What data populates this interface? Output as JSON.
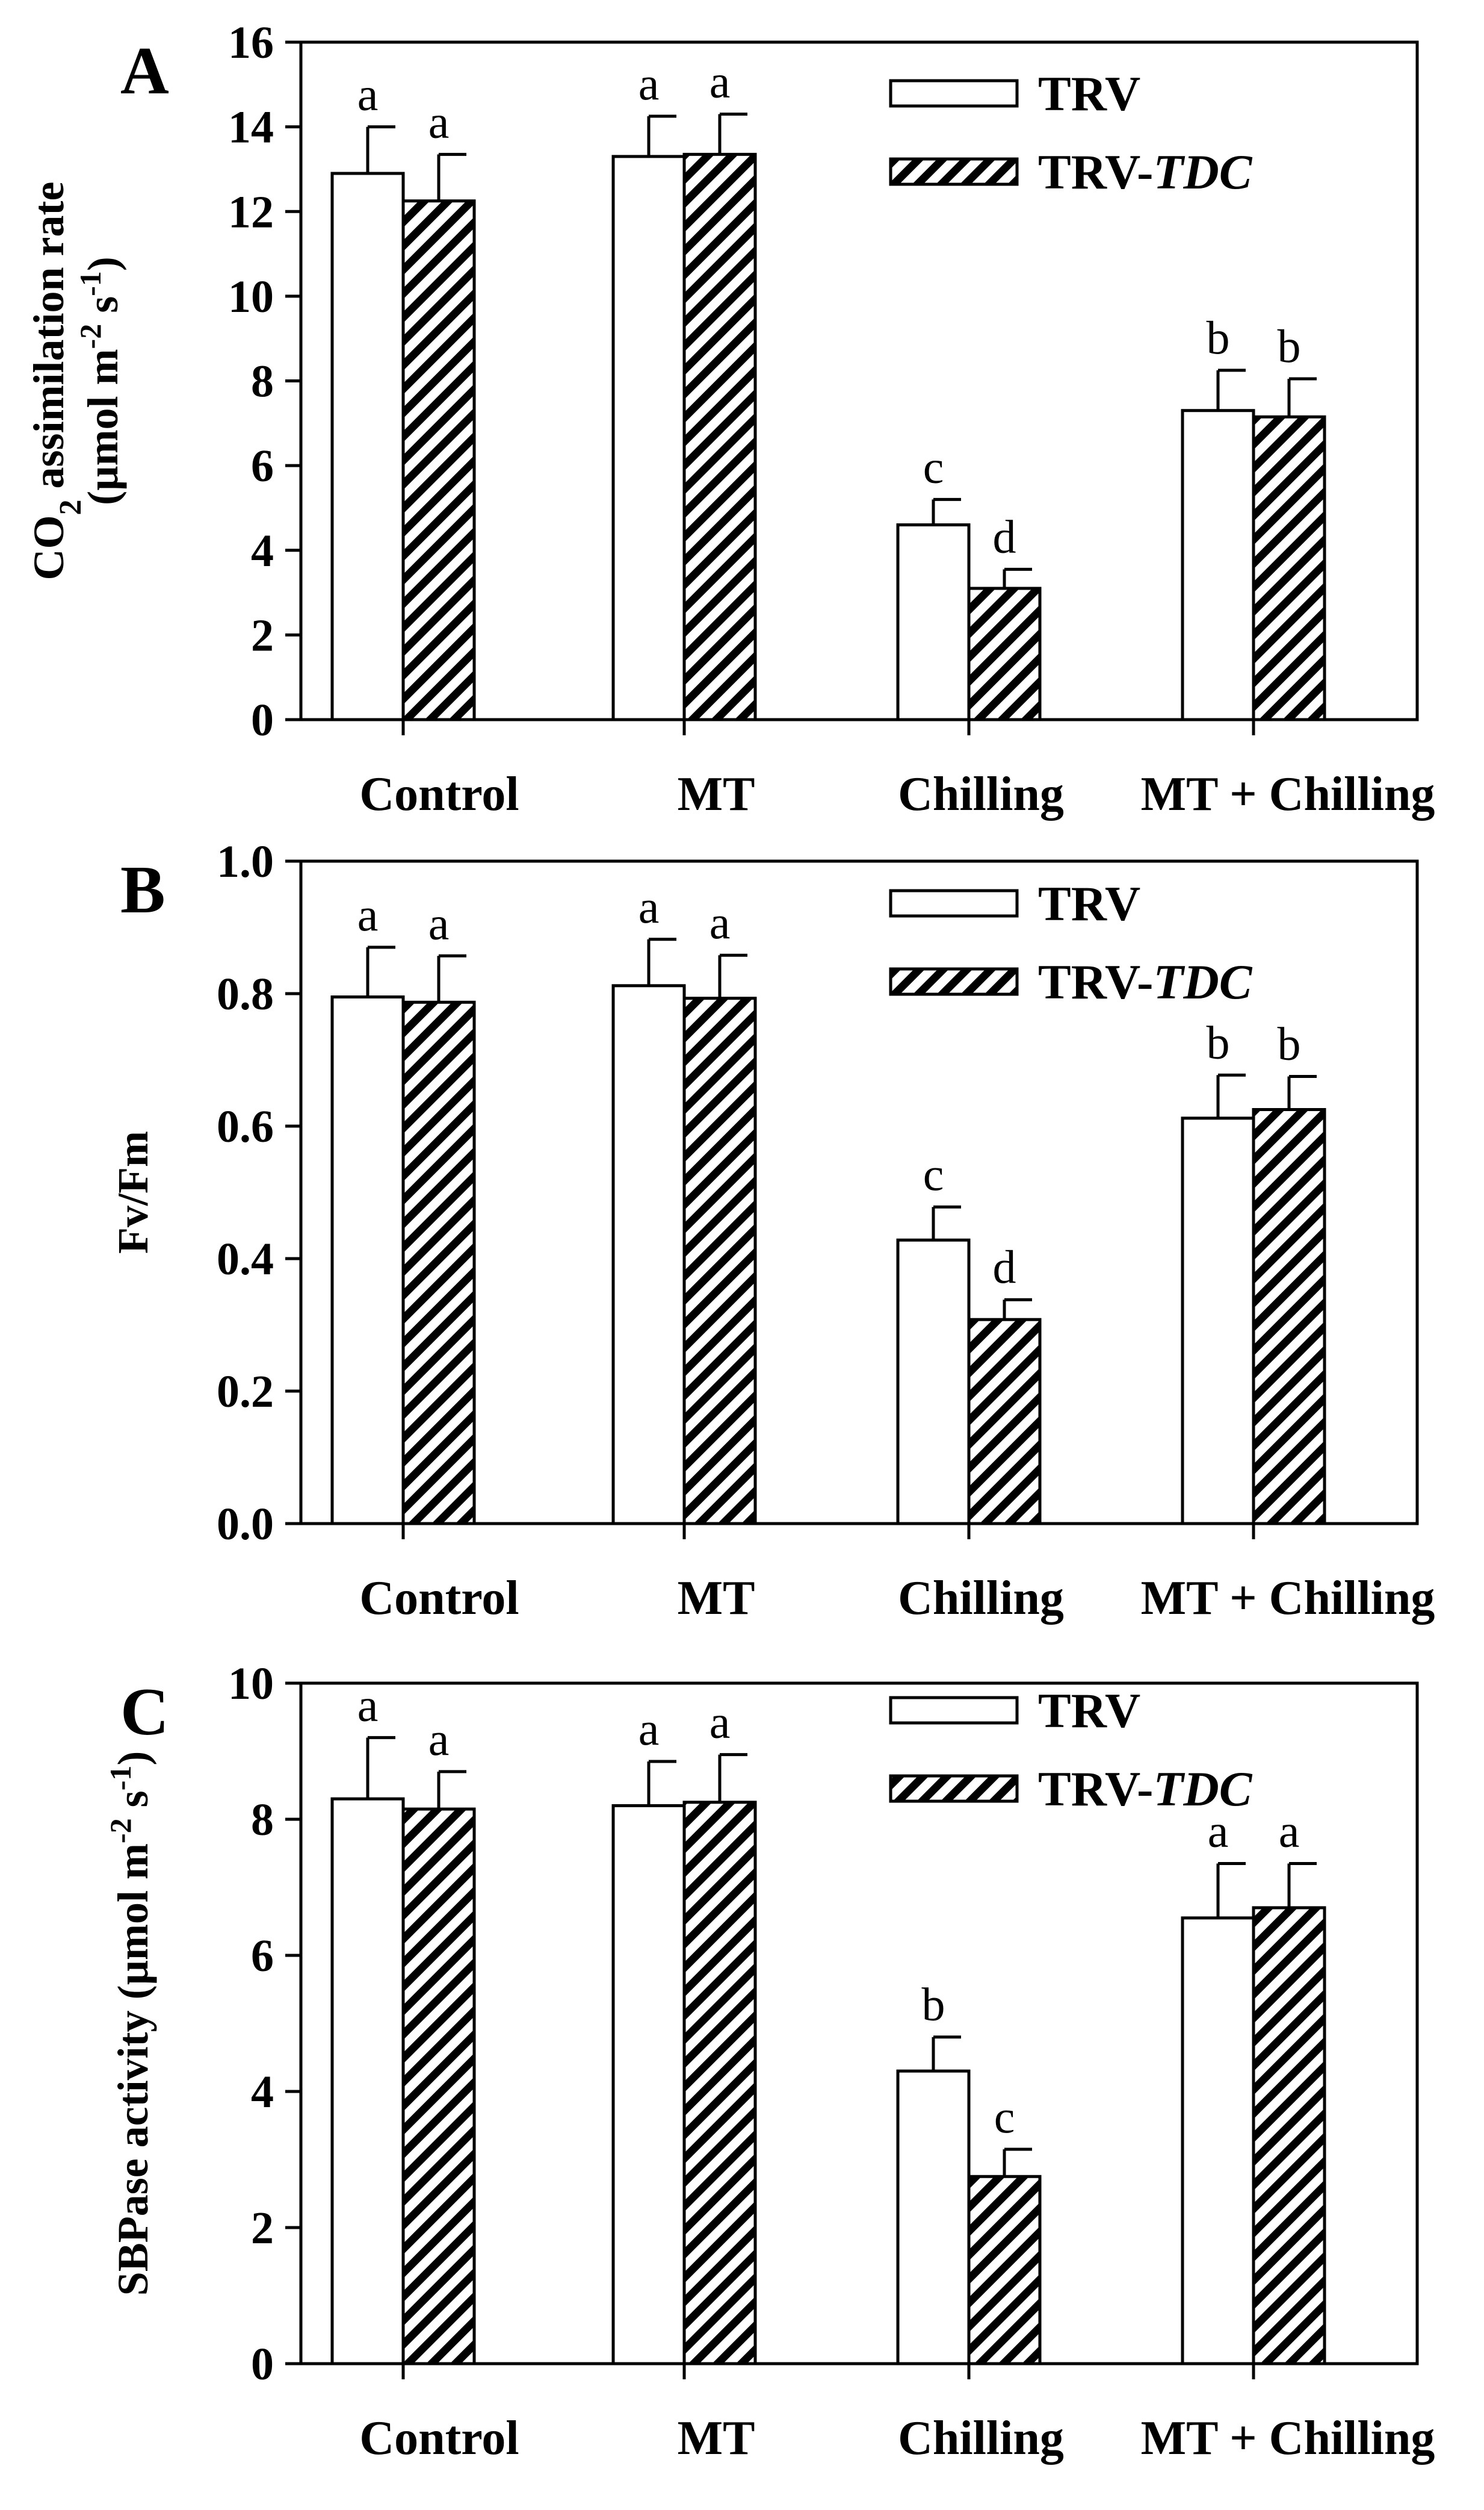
{
  "chart_data": [
    {
      "type": "bar",
      "panel_label": "A",
      "ylabel_parts": [
        "CO",
        "2",
        " assimilation rate"
      ],
      "ylabel2_parts": [
        "(µmol m",
        "-2",
        " s",
        "-1",
        ")"
      ],
      "categories": [
        "Control",
        "MT",
        "Chilling",
        "MT + Chilling"
      ],
      "ylim": [
        0,
        16
      ],
      "yticks": [
        "0",
        "2",
        "4",
        "6",
        "8",
        "10",
        "12",
        "14",
        "16"
      ],
      "series": [
        {
          "name": "TRV",
          "values": [
            12.9,
            13.3,
            4.6,
            7.3
          ],
          "errors": [
            1.1,
            0.95,
            0.6,
            0.95
          ],
          "letters": [
            "a",
            "a",
            "c",
            "b"
          ]
        },
        {
          "name_parts": [
            "TRV-",
            "TDC"
          ],
          "values": [
            12.25,
            13.35,
            3.1,
            7.15
          ],
          "errors": [
            1.1,
            0.95,
            0.45,
            0.9
          ],
          "letters": [
            "a",
            "a",
            "d",
            "b"
          ]
        }
      ],
      "legend_position": "top-right",
      "grid": false
    },
    {
      "type": "bar",
      "panel_label": "B",
      "ylabel_parts": [
        "Fv/Fm"
      ],
      "categories": [
        "Control",
        "MT",
        "Chilling",
        "MT + Chilling"
      ],
      "ylim": [
        0,
        1.0
      ],
      "yticks": [
        "0.0",
        "0.2",
        "0.4",
        "0.6",
        "0.8",
        "1.0"
      ],
      "series": [
        {
          "name": "TRV",
          "values": [
            0.795,
            0.812,
            0.428,
            0.612
          ],
          "errors": [
            0.075,
            0.07,
            0.05,
            0.065
          ],
          "letters": [
            "a",
            "a",
            "c",
            "b"
          ]
        },
        {
          "name_parts": [
            "TRV-",
            "TDC"
          ],
          "values": [
            0.787,
            0.793,
            0.308,
            0.625
          ],
          "errors": [
            0.07,
            0.065,
            0.03,
            0.05
          ],
          "letters": [
            "a",
            "a",
            "d",
            "b"
          ]
        }
      ],
      "legend_position": "top-right",
      "grid": false
    },
    {
      "type": "bar",
      "panel_label": "C",
      "ylabel_parts": [
        "SBPase activity (µmol m",
        "-2",
        " s",
        "-1",
        ")"
      ],
      "categories": [
        "Control",
        "MT",
        "Chilling",
        "MT + Chilling"
      ],
      "ylim": [
        0,
        10
      ],
      "yticks": [
        "0",
        "2",
        "4",
        "6",
        "8",
        "10"
      ],
      "series": [
        {
          "name": "TRV",
          "values": [
            8.3,
            8.2,
            4.3,
            6.55
          ],
          "errors": [
            0.9,
            0.65,
            0.5,
            0.8
          ],
          "letters": [
            "a",
            "a",
            "b",
            "a"
          ]
        },
        {
          "name_parts": [
            "TRV-",
            "TDC"
          ],
          "values": [
            8.15,
            8.25,
            2.75,
            6.7
          ],
          "errors": [
            0.55,
            0.7,
            0.4,
            0.65
          ],
          "letters": [
            "a",
            "a",
            "c",
            "a"
          ]
        }
      ],
      "legend_position": "top-right",
      "grid": false
    }
  ]
}
